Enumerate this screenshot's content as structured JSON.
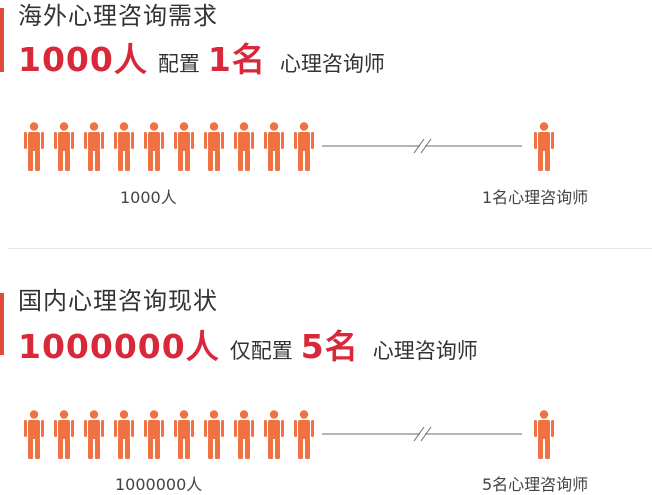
{
  "colors": {
    "accent_bar": "#e24b3a",
    "highlight_text": "#d8283a",
    "person_icon": "#f07243"
  },
  "demand": {
    "heading": "海外心理咨询需求",
    "population": "1000人",
    "verb": "配置",
    "count": "1名",
    "role": "心理咨询师",
    "people_count": 10,
    "caption_left": "1000人",
    "caption_right": "1名心理咨询师",
    "icon": "person-icon",
    "break_icon": "axis-break-icon"
  },
  "current": {
    "heading": "国内心理咨询现状",
    "population": "1000000人",
    "verb": "仅配置",
    "count": "5名",
    "role": "心理咨询师",
    "people_count": 10,
    "caption_left": "1000000人",
    "caption_right": "5名心理咨询师",
    "icon": "person-icon",
    "break_icon": "axis-break-icon"
  }
}
